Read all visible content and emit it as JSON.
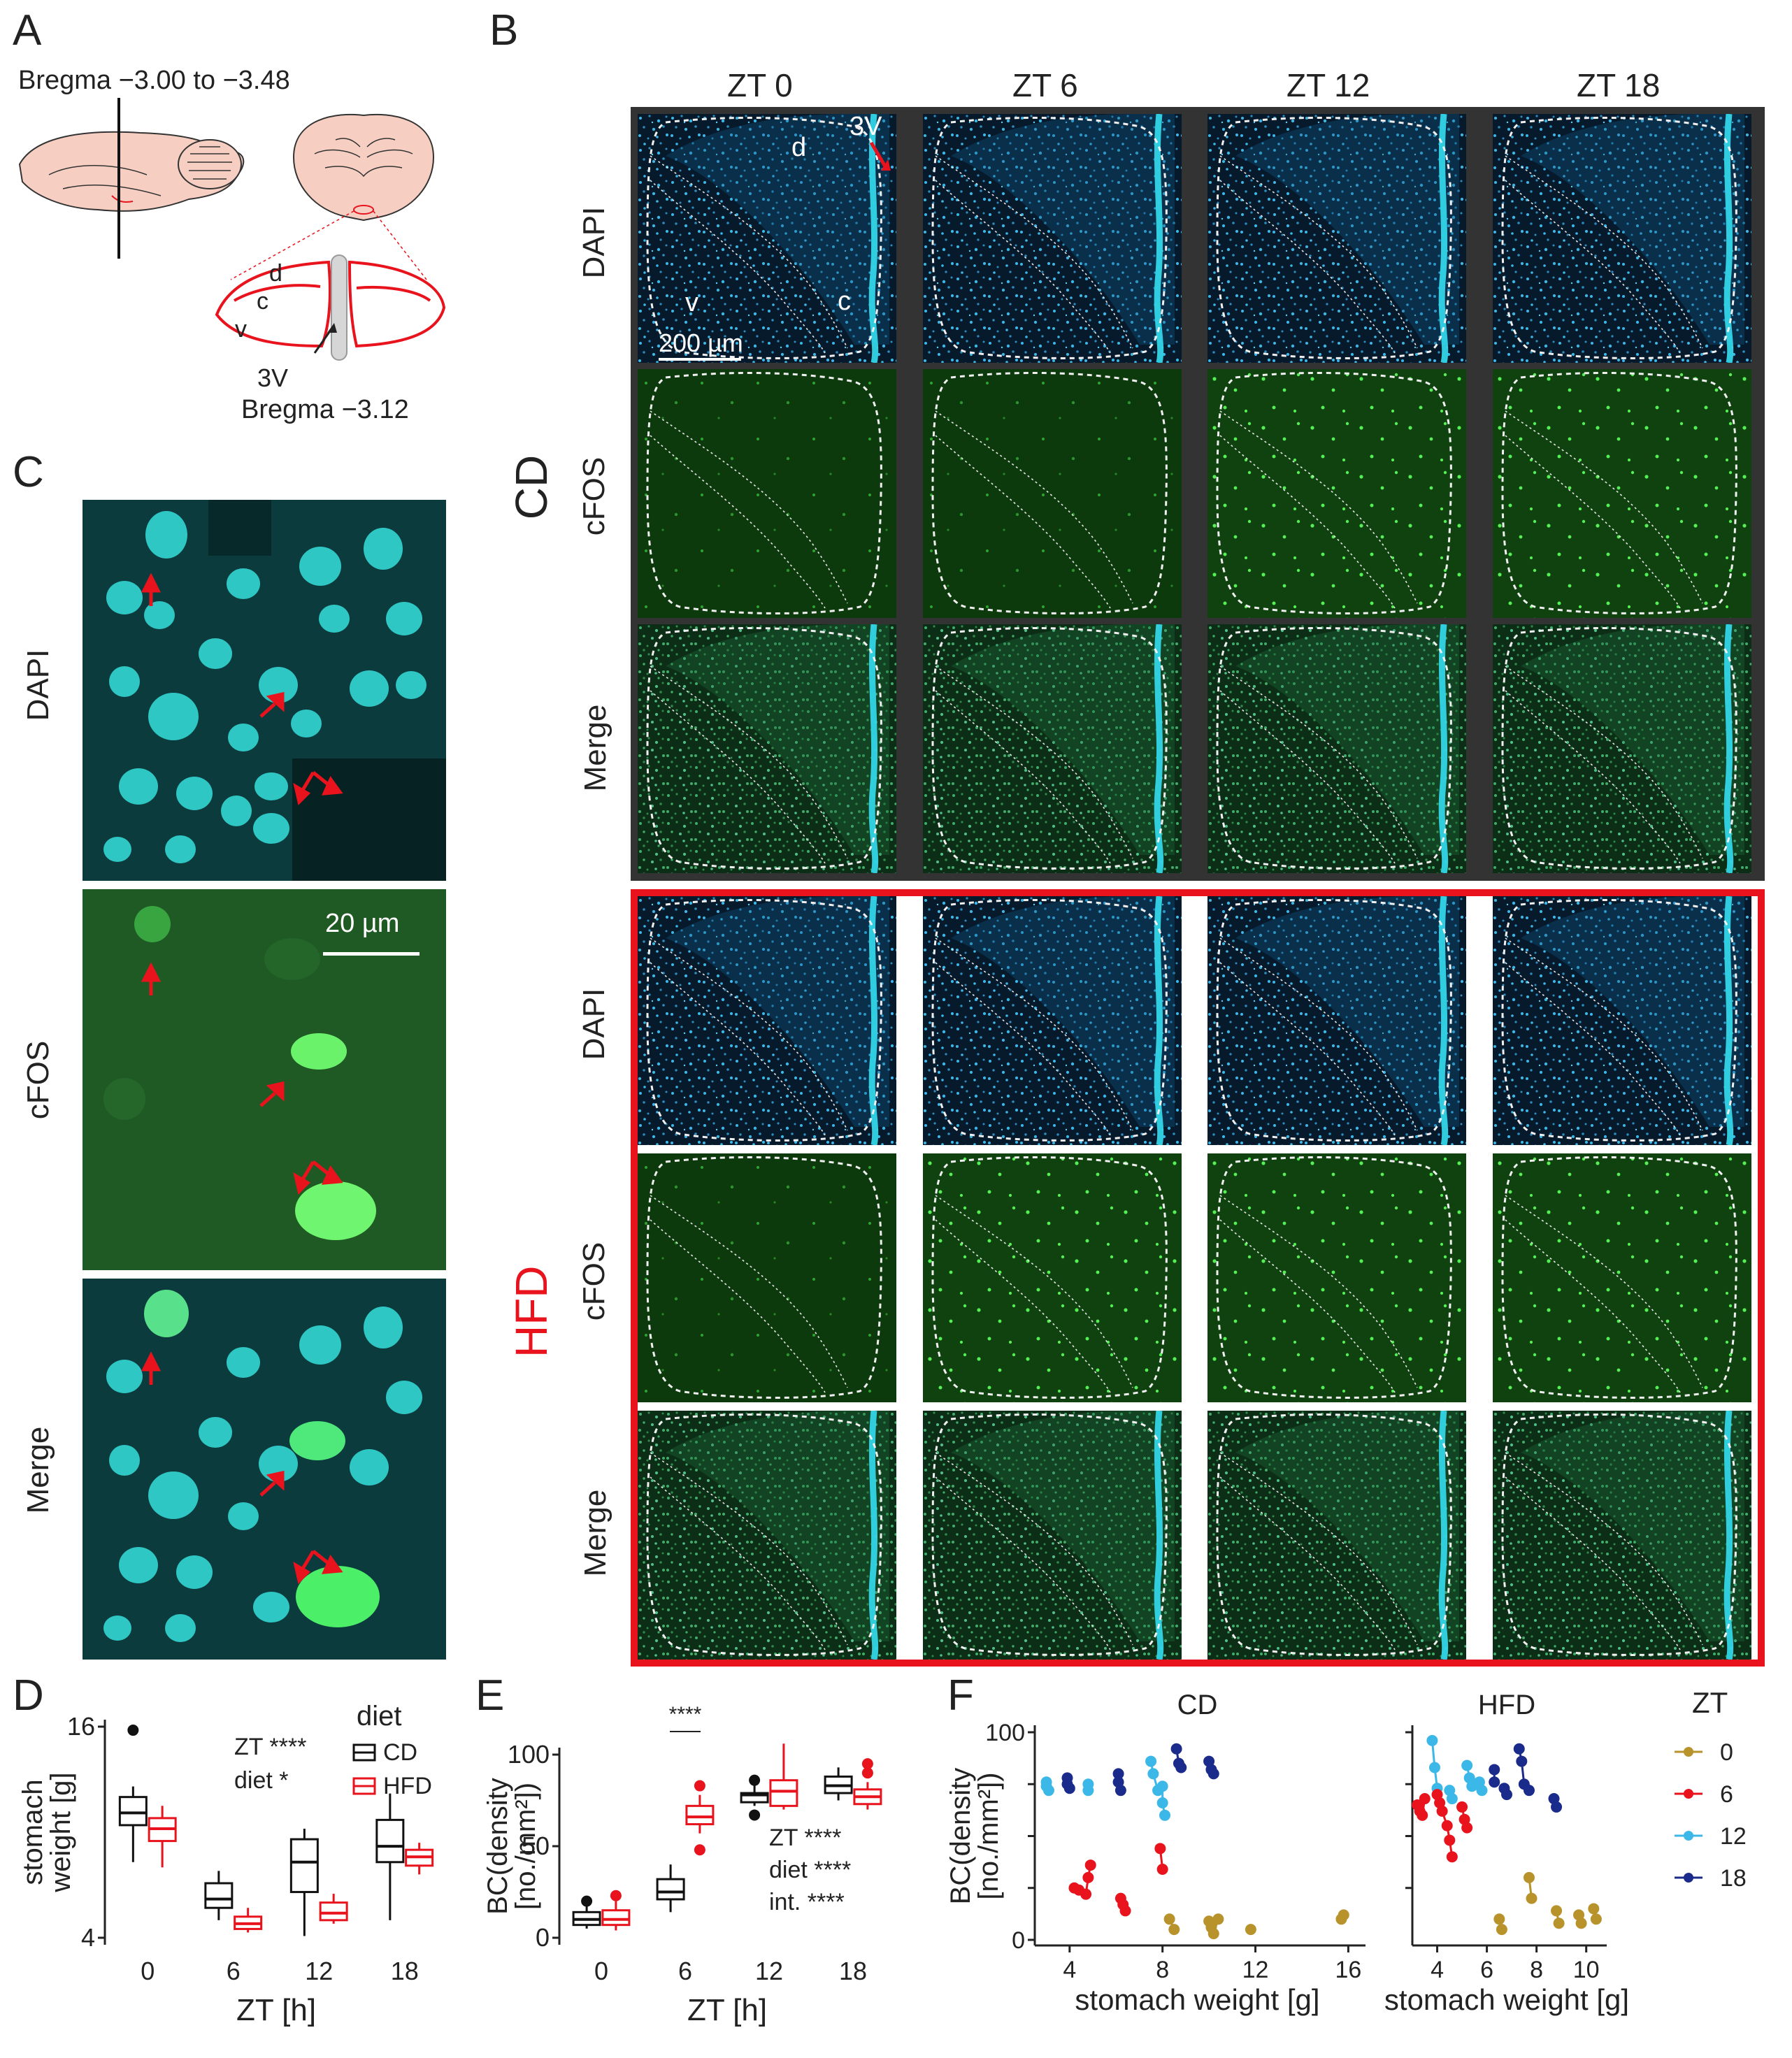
{
  "panels": {
    "A": "A",
    "B": "B",
    "C": "C",
    "D": "D",
    "E": "E",
    "F": "F"
  },
  "panel_a": {
    "bregma_range": "Bregma −3.00 to −3.48",
    "bregma_single": "Bregma −3.12",
    "labels": {
      "d": "d",
      "c": "c",
      "v": "v",
      "third_ventricle": "3V"
    }
  },
  "panel_b": {
    "columns": [
      "ZT 0",
      "ZT 6",
      "ZT 12",
      "ZT 18"
    ],
    "groups": [
      {
        "name": "CD",
        "rows": [
          "DAPI",
          "cFOS",
          "Merge"
        ]
      },
      {
        "name": "HFD",
        "rows": [
          "DAPI",
          "cFOS",
          "Merge"
        ]
      }
    ],
    "annotations": {
      "d": "d",
      "v": "v",
      "c": "c",
      "third_ventricle": "3V"
    },
    "scale_bar": "200 µm",
    "colors": {
      "dapi": "#29a9d6",
      "cfos": "#1f8a1f",
      "hfd_frame": "#e8131c",
      "cd_frame": "#333333"
    }
  },
  "panel_c": {
    "rows": [
      "DAPI",
      "cFOS",
      "Merge"
    ],
    "scale_bar": "20 µm",
    "arrow_color": "#e8131c"
  },
  "chart_data": [
    {
      "id": "D",
      "type": "box",
      "xlabel": "ZT [h]",
      "ylabel": "stomach weight [g]",
      "x_ticks": [
        "0",
        "6",
        "12",
        "18"
      ],
      "y_ticks": [
        "4",
        "16"
      ],
      "ylim": [
        4,
        16
      ],
      "legend_title": "diet",
      "legend_position": "top-right",
      "stats": [
        "ZT ****",
        "diet *"
      ],
      "series": [
        {
          "name": "CD",
          "color": "#111111",
          "boxes": [
            {
              "x": "0",
              "q1": 10.4,
              "median": 11.1,
              "q3": 12.0,
              "lo": 8.3,
              "hi": 12.6,
              "outliers": [
                15.8
              ]
            },
            {
              "x": "6",
              "q1": 5.7,
              "median": 6.2,
              "q3": 7.1,
              "lo": 5.0,
              "hi": 7.8,
              "outliers": []
            },
            {
              "x": "12",
              "q1": 6.6,
              "median": 8.3,
              "q3": 9.6,
              "lo": 4.1,
              "hi": 10.2,
              "outliers": []
            },
            {
              "x": "18",
              "q1": 8.3,
              "median": 9.2,
              "q3": 10.7,
              "lo": 5.0,
              "hi": 12.2,
              "outliers": []
            }
          ]
        },
        {
          "name": "HFD",
          "color": "#e8131c",
          "boxes": [
            {
              "x": "0",
              "q1": 9.5,
              "median": 10.2,
              "q3": 10.8,
              "lo": 8.0,
              "hi": 11.5,
              "outliers": []
            },
            {
              "x": "6",
              "q1": 4.5,
              "median": 4.8,
              "q3": 5.2,
              "lo": 4.3,
              "hi": 5.7,
              "outliers": []
            },
            {
              "x": "12",
              "q1": 5.0,
              "median": 5.4,
              "q3": 6.0,
              "lo": 4.8,
              "hi": 6.5,
              "outliers": []
            },
            {
              "x": "18",
              "q1": 8.1,
              "median": 8.6,
              "q3": 9.0,
              "lo": 7.6,
              "hi": 9.4,
              "outliers": []
            }
          ]
        }
      ]
    },
    {
      "id": "E",
      "type": "box",
      "xlabel": "ZT [h]",
      "ylabel": "BC(density [no./mm²])",
      "x_ticks": [
        "0",
        "6",
        "12",
        "18"
      ],
      "y_ticks": [
        "0",
        "50",
        "100"
      ],
      "ylim": [
        0,
        100
      ],
      "stats": [
        "ZT ****",
        "diet ****",
        "int. ****"
      ],
      "pair_annotation": {
        "x": "6",
        "label": "****"
      },
      "series": [
        {
          "name": "CD",
          "color": "#111111",
          "boxes": [
            {
              "x": "0",
              "q1": 7,
              "median": 10,
              "q3": 14,
              "lo": 5,
              "hi": 17,
              "outliers": [
                20
              ]
            },
            {
              "x": "6",
              "q1": 21,
              "median": 25,
              "q3": 32,
              "lo": 14,
              "hi": 40,
              "outliers": []
            },
            {
              "x": "12",
              "q1": 74,
              "median": 78,
              "q3": 79,
              "lo": 72,
              "hi": 84,
              "outliers": [
                86,
                67
              ]
            },
            {
              "x": "18",
              "q1": 79,
              "median": 83,
              "q3": 88,
              "lo": 75,
              "hi": 93,
              "outliers": []
            }
          ]
        },
        {
          "name": "HFD",
          "color": "#e8131c",
          "boxes": [
            {
              "x": "0",
              "q1": 7,
              "median": 10,
              "q3": 15,
              "lo": 4,
              "hi": 20,
              "outliers": [
                23
              ]
            },
            {
              "x": "6",
              "q1": 62,
              "median": 66,
              "q3": 72,
              "lo": 57,
              "hi": 78,
              "outliers": [
                83,
                48
              ]
            },
            {
              "x": "12",
              "q1": 72,
              "median": 80,
              "q3": 86,
              "lo": 70,
              "hi": 106,
              "outliers": []
            },
            {
              "x": "18",
              "q1": 73,
              "median": 77,
              "q3": 81,
              "lo": 70,
              "hi": 85,
              "outliers": [
                90,
                95
              ]
            }
          ]
        }
      ]
    },
    {
      "id": "F",
      "type": "scatter",
      "ylabel": "BC(density [no./mm²])",
      "legend_title": "ZT",
      "legend_position": "right",
      "zt_colors": {
        "0": "#b8922a",
        "6": "#e8131c",
        "12": "#3cb8e8",
        "18": "#1a2b8c"
      },
      "facets": [
        {
          "name": "CD",
          "xlabel": "stomach weight [g]",
          "x_ticks": [
            "4",
            "8",
            "12",
            "16"
          ],
          "xlim": [
            2.5,
            16.5
          ],
          "y_ticks": [
            "0",
            "100"
          ],
          "ylim": [
            0,
            100
          ],
          "groups": [
            {
              "zt": "18",
              "x": [
                3.9,
                3.9,
                4.0,
                6.1,
                6.1,
                6.2,
                8.6,
                8.7,
                8.8,
                10.0,
                10.1,
                10.2
              ],
              "y": [
                78,
                75,
                73,
                80,
                76,
                72,
                92,
                85,
                83,
                86,
                82,
                80
              ]
            },
            {
              "zt": "12",
              "x": [
                3.0,
                3.0,
                3.1,
                4.8,
                4.8,
                7.5,
                7.6,
                7.8,
                8.0,
                8.0,
                8.1
              ],
              "y": [
                76,
                74,
                72,
                75,
                72,
                86,
                80,
                72,
                74,
                66,
                60
              ]
            },
            {
              "zt": "6",
              "x": [
                4.2,
                4.4,
                4.7,
                4.8,
                4.9,
                6.2,
                6.3,
                6.4,
                7.9,
                8.0
              ],
              "y": [
                25,
                24,
                22,
                30,
                36,
                20,
                17,
                14,
                44,
                34
              ]
            },
            {
              "zt": "0",
              "x": [
                8.3,
                8.5,
                10.0,
                10.1,
                10.2,
                10.4,
                11.8,
                15.7,
                15.8
              ],
              "y": [
                10,
                5,
                9,
                6,
                3,
                10,
                5,
                10,
                12
              ]
            }
          ]
        },
        {
          "name": "HFD",
          "xlabel": "stomach weight [g]",
          "x_ticks": [
            "4",
            "6",
            "8",
            "10"
          ],
          "xlim": [
            3.0,
            10.6
          ],
          "y_ticks": [],
          "ylim": [
            0,
            100
          ],
          "groups": [
            {
              "zt": "18",
              "x": [
                6.3,
                6.3,
                6.7,
                6.8,
                7.3,
                7.4,
                7.5,
                7.7,
                8.7,
                8.8
              ],
              "y": [
                82,
                76,
                73,
                70,
                92,
                86,
                75,
                72,
                68,
                64
              ]
            },
            {
              "zt": "12",
              "x": [
                3.8,
                3.9,
                4.0,
                4.5,
                4.6,
                5.2,
                5.3,
                5.4,
                5.7,
                5.8
              ],
              "y": [
                96,
                83,
                73,
                72,
                68,
                84,
                78,
                74,
                76,
                72
              ]
            },
            {
              "zt": "6",
              "x": [
                3.2,
                3.3,
                3.4,
                3.5,
                4.0,
                4.1,
                4.2,
                4.4,
                4.5,
                4.6,
                5.0,
                5.1,
                5.2
              ],
              "y": [
                65,
                62,
                60,
                68,
                70,
                66,
                62,
                55,
                48,
                40,
                64,
                58,
                54
              ]
            },
            {
              "zt": "0",
              "x": [
                6.5,
                6.6,
                7.7,
                7.8,
                8.8,
                8.9,
                9.7,
                9.8,
                10.3,
                10.4
              ],
              "y": [
                10,
                5,
                30,
                20,
                14,
                8,
                12,
                8,
                15,
                10
              ]
            }
          ]
        }
      ]
    }
  ]
}
